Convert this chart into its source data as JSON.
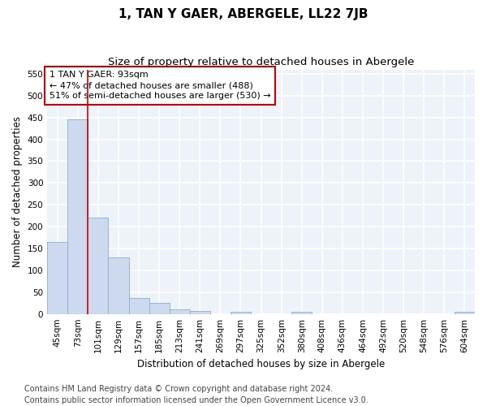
{
  "title": "1, TAN Y GAER, ABERGELE, LL22 7JB",
  "subtitle": "Size of property relative to detached houses in Abergele",
  "xlabel": "Distribution of detached houses by size in Abergele",
  "ylabel": "Number of detached properties",
  "categories": [
    "45sqm",
    "73sqm",
    "101sqm",
    "129sqm",
    "157sqm",
    "185sqm",
    "213sqm",
    "241sqm",
    "269sqm",
    "297sqm",
    "325sqm",
    "352sqm",
    "380sqm",
    "408sqm",
    "436sqm",
    "464sqm",
    "492sqm",
    "520sqm",
    "548sqm",
    "576sqm",
    "604sqm"
  ],
  "values": [
    165,
    445,
    220,
    130,
    37,
    25,
    10,
    6,
    0,
    5,
    0,
    0,
    5,
    0,
    0,
    0,
    0,
    0,
    0,
    0,
    5
  ],
  "bar_color": "#ccd9ee",
  "bar_edge_color": "#8aadd4",
  "ylim": [
    0,
    560
  ],
  "yticks": [
    0,
    50,
    100,
    150,
    200,
    250,
    300,
    350,
    400,
    450,
    500,
    550
  ],
  "red_line_x": 1.5,
  "annotation_title": "1 TAN Y GAER: 93sqm",
  "annotation_line1": "← 47% of detached houses are smaller (488)",
  "annotation_line2": "51% of semi-detached houses are larger (530) →",
  "annotation_box_color": "#ffffff",
  "annotation_box_edge": "#cc0000",
  "red_line_color": "#cc0000",
  "footer1": "Contains HM Land Registry data © Crown copyright and database right 2024.",
  "footer2": "Contains public sector information licensed under the Open Government Licence v3.0.",
  "background_color": "#eef2f9",
  "grid_color": "#ffffff",
  "title_fontsize": 11,
  "subtitle_fontsize": 9.5,
  "axis_label_fontsize": 8.5,
  "tick_fontsize": 7.5,
  "annotation_fontsize": 8,
  "footer_fontsize": 7
}
